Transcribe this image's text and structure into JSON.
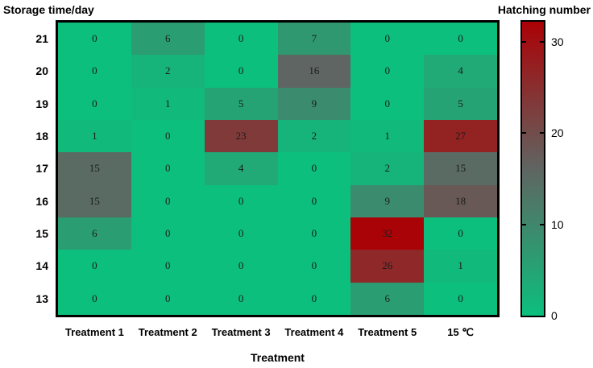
{
  "chart_data": {
    "type": "heatmap",
    "ylabel": "Storage time/day",
    "xlabel": "Treatment",
    "colorbar_title": "Hatching number",
    "rows": [
      "21",
      "20",
      "19",
      "18",
      "17",
      "16",
      "15",
      "14",
      "13"
    ],
    "columns": [
      "Treatment 1",
      "Treatment 2",
      "Treatment 3",
      "Treatment 4",
      "Treatment 5",
      "15 ℃"
    ],
    "values": [
      [
        0,
        6,
        0,
        7,
        0,
        0
      ],
      [
        0,
        2,
        0,
        16,
        0,
        4
      ],
      [
        0,
        1,
        5,
        9,
        0,
        5
      ],
      [
        1,
        0,
        23,
        2,
        1,
        27
      ],
      [
        15,
        0,
        4,
        0,
        2,
        15
      ],
      [
        15,
        0,
        0,
        0,
        9,
        18
      ],
      [
        6,
        0,
        0,
        0,
        32,
        0
      ],
      [
        0,
        0,
        0,
        0,
        26,
        1
      ],
      [
        0,
        0,
        0,
        0,
        6,
        0
      ]
    ],
    "color_scale": {
      "min": 0,
      "max": 32.2,
      "ticks": [
        0,
        10,
        20,
        30
      ],
      "stops": [
        {
          "value": 0,
          "color": "#0CBF7D"
        },
        {
          "value": 16,
          "color": "#5F6562"
        },
        {
          "value": 32,
          "color": "#AA0307"
        }
      ]
    },
    "grid": false,
    "legend_position": "right"
  }
}
